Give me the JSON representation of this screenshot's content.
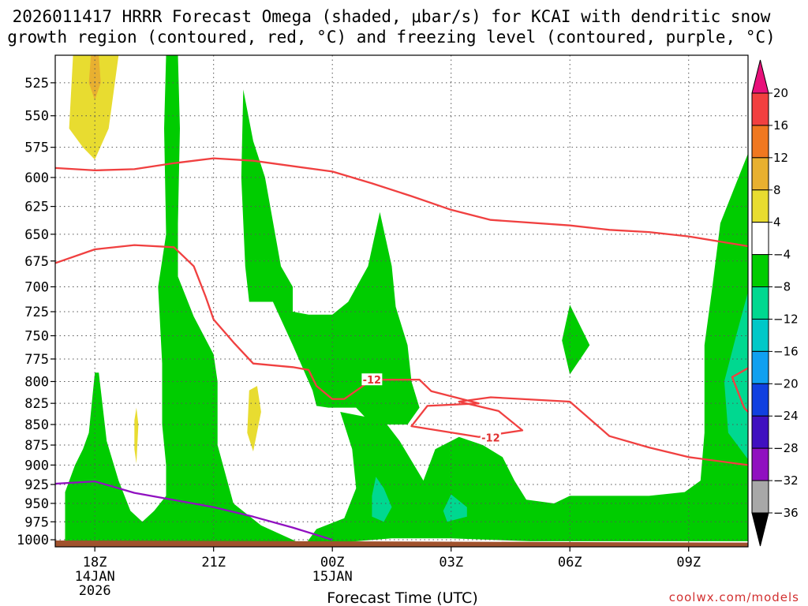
{
  "title_line1": "2026011417 HRRR Forecast Omega (shaded, μbar/s) for KCAI with dendritic snow",
  "title_line2": "growth region (contoured, red, °C) and freezing level (contoured, purple, °C)",
  "credit": "coolwx.com/models",
  "chart_data": {
    "type": "heatmap",
    "title": "2026011417 HRRR Forecast Omega (shaded, μbar/s) for KCAI with dendritic snow growth region (contoured, red, °C) and freezing level (contoured, purple, °C)",
    "xlabel": "Forecast Time (UTC)",
    "ylabel": "",
    "x_range_hours": [
      -1,
      16.5
    ],
    "x_ticks": [
      {
        "hour": 0,
        "label": "18Z",
        "sub1": "14JAN",
        "sub2": "2026"
      },
      {
        "hour": 3,
        "label": "21Z",
        "sub1": "",
        "sub2": ""
      },
      {
        "hour": 6,
        "label": "00Z",
        "sub1": "15JAN",
        "sub2": ""
      },
      {
        "hour": 9,
        "label": "03Z",
        "sub1": "",
        "sub2": ""
      },
      {
        "hour": 12,
        "label": "06Z",
        "sub1": "",
        "sub2": ""
      },
      {
        "hour": 15,
        "label": "09Z",
        "sub1": "",
        "sub2": ""
      }
    ],
    "y_range_hpa": [
      1010,
      505
    ],
    "y_scale": "pressure",
    "y_ticks": [
      525,
      550,
      575,
      600,
      625,
      650,
      675,
      700,
      725,
      750,
      775,
      800,
      825,
      850,
      875,
      900,
      925,
      950,
      975,
      1000
    ],
    "grid": true,
    "colorbar": {
      "levels": [
        20,
        16,
        12,
        8,
        4,
        -4,
        -8,
        -12,
        -16,
        -20,
        -24,
        -28,
        -32,
        -36
      ],
      "colors": [
        "#e8107a",
        "#f24040",
        "#f07820",
        "#e8b030",
        "#e8dc30",
        "#ffffff",
        "#00cc00",
        "#00d890",
        "#00c8c8",
        "#10a0f0",
        "#1040e0",
        "#4010c0",
        "#9010c0",
        "#a8a8a8",
        "#000000"
      ]
    },
    "shaded_regions": [
      {
        "range": "4 to 8",
        "color": "#e8dc30",
        "approx_time_hpa": [
          [
            -0.5,
            500
          ],
          [
            -0.6,
            540
          ],
          [
            0,
            583
          ],
          [
            0.6,
            540
          ],
          [
            0.5,
            500
          ]
        ]
      },
      {
        "range": "8 to 12",
        "color": "#e8b030",
        "approx_time_hpa": [
          [
            -0.1,
            500
          ],
          [
            -0.1,
            520
          ],
          [
            0,
            537
          ],
          [
            0.1,
            520
          ],
          [
            0.1,
            500
          ]
        ]
      },
      {
        "range": "-4 to -8",
        "color": "#00cc00",
        "note": "broad ascent region through most of the period"
      },
      {
        "range": "-8 to -12",
        "color": "#00d890",
        "approx_time_hpa": [
          [
            16.5,
            700
          ],
          [
            16,
            780
          ],
          [
            16.4,
            895
          ],
          [
            16.5,
            890
          ]
        ]
      }
    ],
    "series": [
      {
        "name": "-12",
        "color": "#f04040",
        "type": "contour",
        "points": [
          [
            -1,
            592
          ],
          [
            0,
            594
          ],
          [
            1,
            593
          ],
          [
            2,
            588
          ],
          [
            3,
            584
          ],
          [
            4,
            586
          ],
          [
            6,
            595
          ],
          [
            7,
            605
          ],
          [
            8,
            616
          ],
          [
            9,
            628
          ],
          [
            10,
            637
          ],
          [
            12,
            642
          ],
          [
            13,
            646
          ],
          [
            14,
            648
          ],
          [
            15,
            652
          ],
          [
            16.5,
            661
          ]
        ]
      },
      {
        "name": "-12",
        "color": "#f04040",
        "type": "contour",
        "points": [
          [
            -1,
            677
          ],
          [
            0,
            664
          ],
          [
            1,
            660
          ],
          [
            2,
            662
          ],
          [
            2.5,
            680
          ],
          [
            2.8,
            710
          ],
          [
            3,
            733
          ],
          [
            3.5,
            757
          ],
          [
            4,
            780
          ],
          [
            5,
            784
          ],
          [
            5.4,
            787
          ],
          [
            5.6,
            805
          ],
          [
            6,
            820
          ],
          [
            6.3,
            820
          ],
          [
            7,
            798
          ],
          [
            8.2,
            798
          ],
          [
            8.5,
            811
          ],
          [
            9.7,
            825
          ],
          [
            8.4,
            828
          ],
          [
            8,
            852
          ],
          [
            9.7,
            865
          ],
          [
            10.8,
            857
          ],
          [
            10.2,
            834
          ],
          [
            9.2,
            823
          ],
          [
            10,
            818
          ],
          [
            12,
            823
          ],
          [
            13,
            864
          ],
          [
            14,
            878
          ],
          [
            15,
            890
          ],
          [
            16.5,
            900
          ]
        ]
      },
      {
        "name": "-12",
        "color": "#f04040",
        "type": "contour",
        "points": [
          [
            16.5,
            785
          ],
          [
            16.1,
            795
          ],
          [
            16.4,
            830
          ],
          [
            16.5,
            835
          ]
        ]
      },
      {
        "name": "0",
        "color": "#9010c0",
        "type": "freezing level",
        "points": [
          [
            -1,
            924
          ],
          [
            0,
            921
          ],
          [
            1,
            936
          ],
          [
            3,
            955
          ],
          [
            4,
            968
          ],
          [
            5,
            983
          ],
          [
            6,
            1000
          ]
        ]
      }
    ],
    "contour_labels": [
      {
        "text": "-12",
        "hour": 7,
        "hpa": 798
      },
      {
        "text": "-12",
        "hour": 10.0,
        "hpa": 866
      }
    ]
  }
}
